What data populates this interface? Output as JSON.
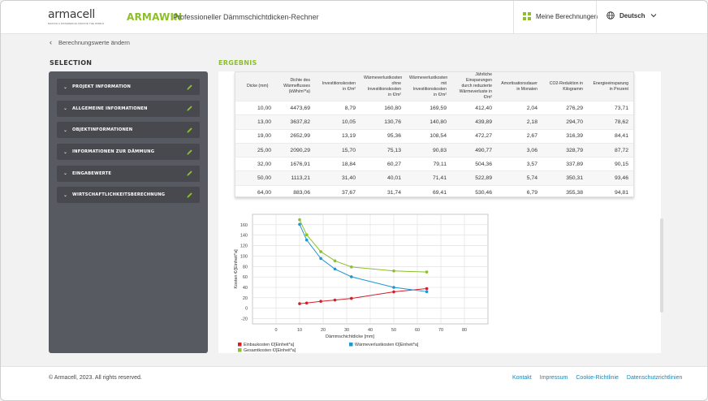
{
  "header": {
    "logo_text": "armacell",
    "logo_tagline": "MAKING A DIFFERENCE AROUND THE WORLD",
    "brand": "ARMAWIN",
    "subtitle": "Professioneller Dämmschichtdicken-Rechner",
    "my_calculations": "Meine Berechnungen",
    "language": "Deutsch",
    "accent_color": "#8cbf2a"
  },
  "back_link": "Berechnungswerte ändern",
  "selection": {
    "title": "SELECTION",
    "items": [
      {
        "label": "PROJEKT INFORMATION"
      },
      {
        "label": "ALLGEMEINE INFORMATIONEN"
      },
      {
        "label": "OBJEKTINFORMATIONEN"
      },
      {
        "label": "INFORMATIONEN ZUR DÄMMUNG"
      },
      {
        "label": "EINGABEWERTE"
      },
      {
        "label": "WIRTSCHAFTLICHKEITSBERECHNUNG"
      }
    ]
  },
  "result": {
    "title": "ERGEBNIS",
    "table": {
      "headers": [
        "Dicke (mm)",
        "Dichte des Wärmeflusses (kWh/m²*a)",
        "Investitionskosten in €/m²",
        "Wärmeverlustkosten ohne Investitionskosten in €/m²",
        "Wärmeverlustkosten mit Investitionskosten in €/m²",
        "Jährliche Einsparungen durch reduzierte Wärmeverluste in €/m²",
        "Amortisationsdauer in Monaten",
        "CO2-Reduktion in Kilogramm",
        "Energieeinsparung in Prozent"
      ],
      "rows": [
        [
          "10,00",
          "4473,69",
          "8,79",
          "160,80",
          "169,59",
          "412,40",
          "2,04",
          "276,29",
          "73,71"
        ],
        [
          "13,00",
          "3637,82",
          "10,05",
          "130,76",
          "140,80",
          "439,89",
          "2,18",
          "294,70",
          "78,62"
        ],
        [
          "19,00",
          "2652,99",
          "13,19",
          "95,36",
          "108,54",
          "472,27",
          "2,67",
          "316,39",
          "84,41"
        ],
        [
          "25,00",
          "2090,29",
          "15,70",
          "75,13",
          "90,83",
          "490,77",
          "3,06",
          "328,79",
          "87,72"
        ],
        [
          "32,00",
          "1676,91",
          "18,84",
          "60,27",
          "79,11",
          "504,36",
          "3,57",
          "337,89",
          "90,15"
        ],
        [
          "50,00",
          "1113,21",
          "31,40",
          "40,01",
          "71,41",
          "522,89",
          "5,74",
          "350,31",
          "93,46"
        ],
        [
          "64,00",
          "883,06",
          "37,67",
          "31,74",
          "69,41",
          "530,46",
          "6,79",
          "355,38",
          "94,81"
        ]
      ]
    }
  },
  "chart_data": {
    "type": "line",
    "title": "",
    "xlabel": "Dämmschichtdicke [mm]",
    "ylabel": "Kosten €/[Einheit*a]",
    "xlim": [
      -10,
      90
    ],
    "ylim": [
      -30,
      180
    ],
    "x_ticks": [
      0,
      10,
      20,
      30,
      40,
      50,
      60,
      70,
      80
    ],
    "y_ticks": [
      -20,
      0,
      20,
      40,
      60,
      80,
      100,
      120,
      140,
      160
    ],
    "grid": true,
    "legend_position": "bottom",
    "x": [
      10,
      13,
      19,
      25,
      32,
      50,
      64
    ],
    "series": [
      {
        "name": "Einbaukosten €/[Einheit*a]",
        "color": "#d0202a",
        "values": [
          8.79,
          10.05,
          13.19,
          15.7,
          18.84,
          31.4,
          37.67
        ]
      },
      {
        "name": "Wärmeverlustkosten €/[Einheit*a]",
        "color": "#1e96d2",
        "values": [
          160.8,
          130.76,
          95.36,
          75.13,
          60.27,
          40.01,
          31.74
        ]
      },
      {
        "name": "Gesamtkosten €/[Einheit*a]",
        "color": "#8cbf2a",
        "values": [
          169.59,
          140.8,
          108.54,
          90.83,
          79.11,
          71.41,
          69.41
        ]
      }
    ]
  },
  "footer": {
    "copyright": "© Armacell, 2023. All rights reserved.",
    "links": [
      "Kontakt",
      "Impressum",
      "Cookie-Richtlinie",
      "Datenschutzrichtlinien"
    ]
  }
}
